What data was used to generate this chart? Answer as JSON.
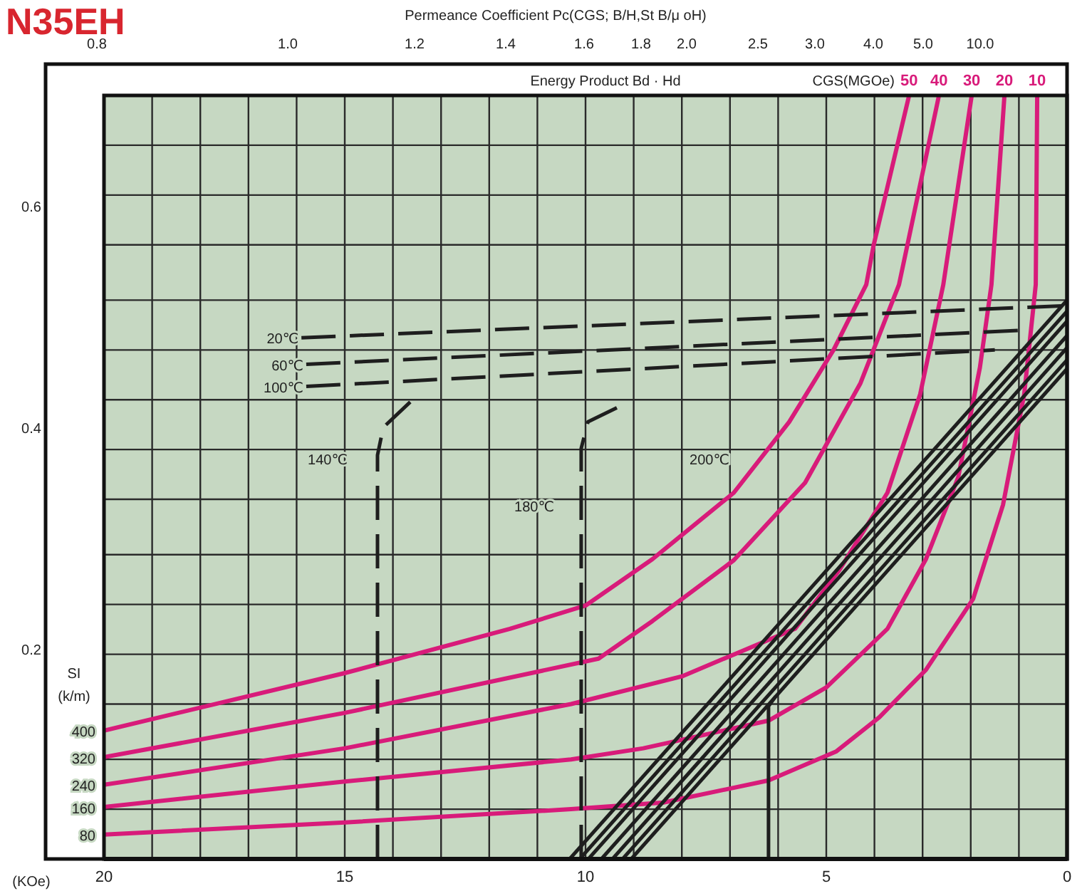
{
  "chart_data": {
    "type": "line",
    "title": "N35EH",
    "x2label": "Permeance Coefficient Pc(CGS; B/H,St B/μ oH)",
    "xlabel": "(KOe)",
    "annotations": [
      "Energy Product Bd · Hd",
      "CGS(MGOe)",
      "SI (k/m)",
      "400",
      "320",
      "240",
      "160",
      "80",
      "140℃",
      "180℃",
      "200℃",
      "0.8",
      "1.0",
      "1.2",
      "1.4",
      "1.6",
      "1.8",
      "2.0",
      "2.5",
      "3.0",
      "4.0",
      "5.0",
      "10.0"
    ],
    "xlim": [
      20,
      0
    ],
    "xticks": [
      20,
      {
        "value": 19,
        "label": null
      },
      {
        "value": 18,
        "label": null
      },
      {
        "value": 17,
        "label": null
      },
      {
        "value": 16,
        "label": null
      },
      15,
      {
        "value": 14,
        "label": null
      },
      {
        "value": 13,
        "label": null
      },
      {
        "value": 12,
        "label": null
      },
      {
        "value": 11,
        "label": null
      },
      10,
      {
        "value": 9,
        "label": null
      },
      {
        "value": 8,
        "label": null
      },
      {
        "value": 7,
        "label": null
      },
      {
        "value": 6,
        "label": null
      },
      5,
      {
        "value": 4,
        "label": null
      },
      {
        "value": 3,
        "label": null
      },
      {
        "value": 2,
        "label": null
      },
      {
        "value": 1,
        "label": null
      },
      0
    ],
    "ylim": [
      0.01,
      0.7
    ],
    "yticks": [
      {
        "value": 0.7,
        "label": null
      },
      {
        "value": 0.655,
        "label": null
      },
      {
        "value": 0.61,
        "label": null
      },
      0.6,
      {
        "value": 0.565,
        "label": null
      },
      {
        "value": 0.515,
        "label": null
      },
      {
        "value": 0.47,
        "label": null
      },
      {
        "value": 0.425,
        "label": null
      },
      0.4,
      {
        "value": 0.38,
        "label": null
      },
      {
        "value": 0.335,
        "label": null
      },
      {
        "value": 0.285,
        "label": null
      },
      {
        "value": 0.24,
        "label": null
      },
      0.2,
      {
        "value": 0.195,
        "label": null
      },
      {
        "value": 0.15,
        "label": null
      },
      {
        "value": 0.1,
        "label": null
      },
      {
        "value": 0.055,
        "label": null
      },
      {
        "value": 0.01,
        "label": null
      }
    ],
    "grid": true,
    "marker": "none",
    "line_style": "solid",
    "series": [
      {
        "name": "50",
        "color": "#d81b7a",
        "x": [
          3.28,
          4.02,
          4.17,
          4.85,
          5.77,
          6.92,
          8.61,
          10.0,
          11.57,
          15.0,
          20
        ],
        "values": [
          0.7,
          0.564,
          0.529,
          0.47,
          0.405,
          0.341,
          0.281,
          0.239,
          0.218,
          0.178,
          0.126
        ]
      },
      {
        "name": "40",
        "color": "#d81b7a",
        "x": [
          2.66,
          3.49,
          4.29,
          5.44,
          6.92,
          8.61,
          9.73,
          15,
          20
        ],
        "values": [
          0.7,
          0.529,
          0.44,
          0.35,
          0.28,
          0.225,
          0.191,
          0.142,
          0.102
        ]
      },
      {
        "name": "30",
        "color": "#d81b7a",
        "x": [
          1.98,
          2.57,
          3.05,
          3.73,
          4.73,
          5.65,
          8.0,
          10.3,
          15,
          20
        ],
        "values": [
          0.7,
          0.529,
          0.43,
          0.341,
          0.271,
          0.218,
          0.175,
          0.15,
          0.11,
          0.077
        ]
      },
      {
        "name": "20",
        "color": "#d81b7a",
        "x": [
          1.3,
          1.57,
          1.81,
          2.26,
          2.93,
          3.73,
          4.4,
          5.0,
          6.2,
          8.8,
          10.3,
          15,
          20
        ],
        "values": [
          0.7,
          0.529,
          0.454,
          0.355,
          0.281,
          0.218,
          0.19,
          0.165,
          0.135,
          0.11,
          0.1,
          0.08,
          0.057
        ]
      },
      {
        "name": "10",
        "color": "#d81b7a",
        "x": [
          0.62,
          0.65,
          0.89,
          1.33,
          1.95,
          2.93,
          3.9,
          4.8,
          6.2,
          8.38,
          10.3,
          15,
          20
        ],
        "values": [
          0.7,
          0.529,
          0.43,
          0.33,
          0.245,
          0.181,
          0.138,
          0.107,
          0.081,
          0.061,
          0.055,
          0.043,
          0.032
        ]
      },
      {
        "name": "20℃",
        "color": "#1e1e1e",
        "line_style": "dashed",
        "x": [
          15.9,
          0
        ],
        "values": [
          0.481,
          0.51
        ]
      },
      {
        "name": "60℃",
        "color": "#1e1e1e",
        "line_style": "dashed",
        "x": [
          15.8,
          0.8
        ],
        "values": [
          0.457,
          0.488
        ]
      },
      {
        "name": "100℃",
        "color": "#1e1e1e",
        "line_style": "dashed",
        "x": [
          15.8,
          1.5
        ],
        "values": [
          0.437,
          0.47
        ]
      },
      {
        "color": "#1e1e1e",
        "line_style": "dashed",
        "x": [
          14.32,
          14.32,
          14.2,
          13.64
        ],
        "values": [
          0.01,
          0.375,
          0.4,
          0.423
        ]
      },
      {
        "color": "#1e1e1e",
        "line_style": "dashed",
        "x": [
          10.09,
          10.09,
          9.95,
          9.29
        ],
        "values": [
          0.01,
          0.381,
          0.405,
          0.419
        ]
      },
      {
        "color": "#1e1e1e",
        "x": [
          6.2,
          6.2,
          6.05
        ],
        "values": [
          0.01,
          0.148,
          0.157
        ]
      },
      {
        "color": "#1e1e1e",
        "x": [
          10.33,
          0
        ],
        "values": [
          0.01,
          0.515
        ]
      },
      {
        "color": "#1e1e1e",
        "x": [
          10.12,
          0
        ],
        "values": [
          0.01,
          0.505
        ]
      },
      {
        "color": "#1e1e1e",
        "x": [
          9.94,
          0
        ],
        "values": [
          0.01,
          0.496
        ]
      },
      {
        "color": "#1e1e1e",
        "x": [
          9.67,
          0
        ],
        "values": [
          0.01,
          0.483
        ]
      },
      {
        "color": "#1e1e1e",
        "x": [
          9.44,
          0
        ],
        "values": [
          0.01,
          0.472
        ]
      },
      {
        "color": "#1e1e1e",
        "x": [
          9.23,
          0
        ],
        "values": [
          0.01,
          0.461
        ]
      },
      {
        "color": "#1e1e1e",
        "x": [
          9.05,
          0
        ],
        "values": [
          0.01,
          0.453
        ]
      }
    ]
  }
}
